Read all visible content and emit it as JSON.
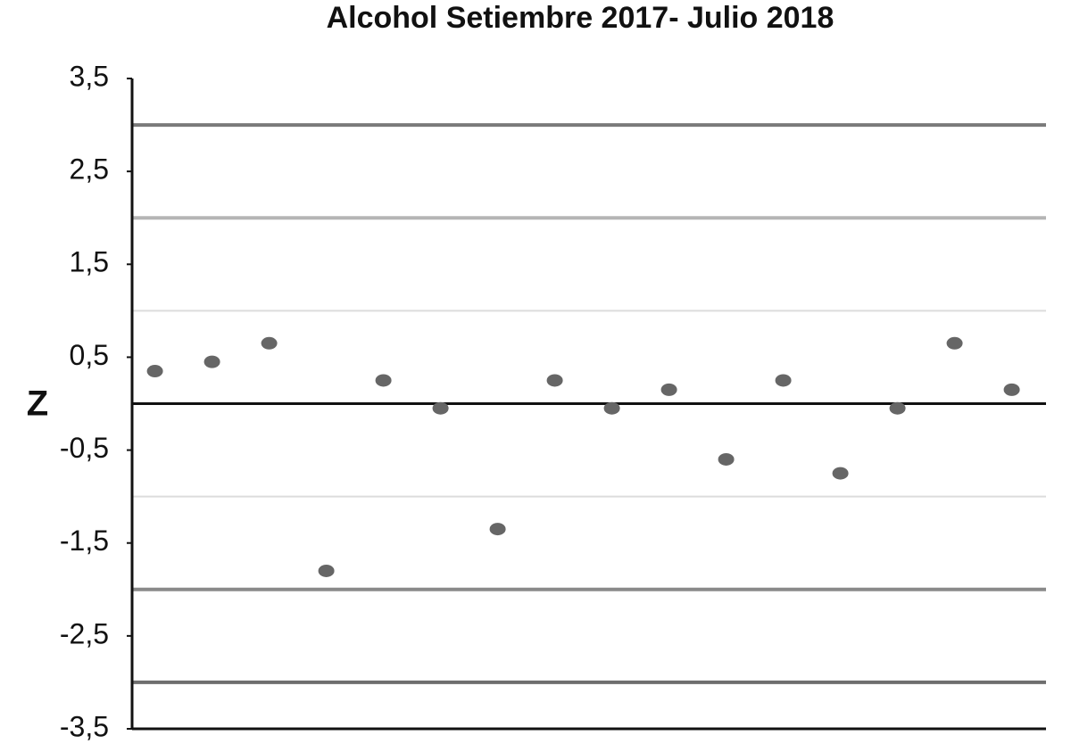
{
  "chart_data": {
    "type": "scatter",
    "title": "Alcohol  Setiembre 2017- Julio 2018",
    "y_label": "Z",
    "categories": [
      null,
      null,
      null,
      null,
      null,
      null,
      null,
      null,
      null,
      null,
      null,
      null,
      null,
      null,
      null,
      null
    ],
    "values": [
      0.35,
      0.45,
      0.65,
      -1.8,
      0.25,
      -0.05,
      -1.35,
      0.25,
      -0.05,
      0.15,
      -0.6,
      0.25,
      -0.75,
      -0.05,
      0.65,
      0.15
    ],
    "color": "#666666",
    "ylim": [
      -3.5,
      3.5
    ],
    "yticks": [
      {
        "value": -3.5,
        "label": "-3,5"
      },
      {
        "value": -2.5,
        "label": "-2,5"
      },
      {
        "value": -1.5,
        "label": "-1,5"
      },
      {
        "value": -0.5,
        "label": "-0,5"
      },
      {
        "value": 0.5,
        "label": "0,5"
      },
      {
        "value": 1.5,
        "label": "1,5"
      },
      {
        "value": 2.5,
        "label": "2,5"
      },
      {
        "value": 3.5,
        "label": "3,5"
      }
    ],
    "reference_lines": [
      {
        "value": 3,
        "color": "#7a7a7a"
      },
      {
        "value": 2,
        "color": "#b5b5b5"
      },
      {
        "value": 1,
        "color": "#dcdcdc"
      },
      {
        "value": 0,
        "color": "#111111"
      },
      {
        "value": -1,
        "color": "#dcdcdc"
      },
      {
        "value": -2,
        "color": "#8a8a8a"
      },
      {
        "value": -3,
        "color": "#6e6e6e"
      }
    ]
  }
}
